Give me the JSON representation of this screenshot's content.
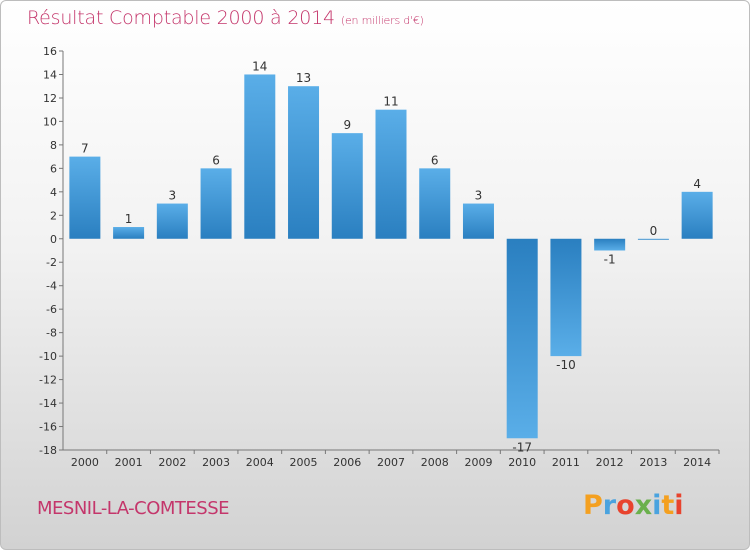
{
  "header": {
    "title": "Résultat Comptable 2000 à 2014",
    "subtitle": "(en milliers d'€)"
  },
  "commune": "MESNIL-LA-COMTESSE",
  "logo": {
    "text": "Proxiti",
    "colors": [
      "#f4a020",
      "#4aa3df",
      "#e8432d",
      "#6ab04c",
      "#4aa3df",
      "#f4a020",
      "#e8432d"
    ]
  },
  "colors": {
    "bar_light": "#5aaee8",
    "bar_dark": "#2a7fc0",
    "accent": "#c4366b"
  },
  "chart_data": {
    "type": "bar",
    "title": "Résultat Comptable 2000 à 2014",
    "subtitle": "(en milliers d'€)",
    "categories": [
      "2000",
      "2001",
      "2002",
      "2003",
      "2004",
      "2005",
      "2006",
      "2007",
      "2008",
      "2009",
      "2010",
      "2011",
      "2012",
      "2013",
      "2014"
    ],
    "values": [
      7,
      1,
      3,
      6,
      14,
      13,
      9,
      11,
      6,
      3,
      -17,
      -10,
      -1,
      0,
      4
    ],
    "ylim": [
      -18,
      16
    ],
    "yticks": [
      16,
      14,
      12,
      10,
      8,
      6,
      4,
      2,
      0,
      -2,
      -4,
      -6,
      -8,
      -10,
      -12,
      -14,
      -16,
      -18
    ],
    "grid": false,
    "xlabel": "",
    "ylabel": ""
  }
}
